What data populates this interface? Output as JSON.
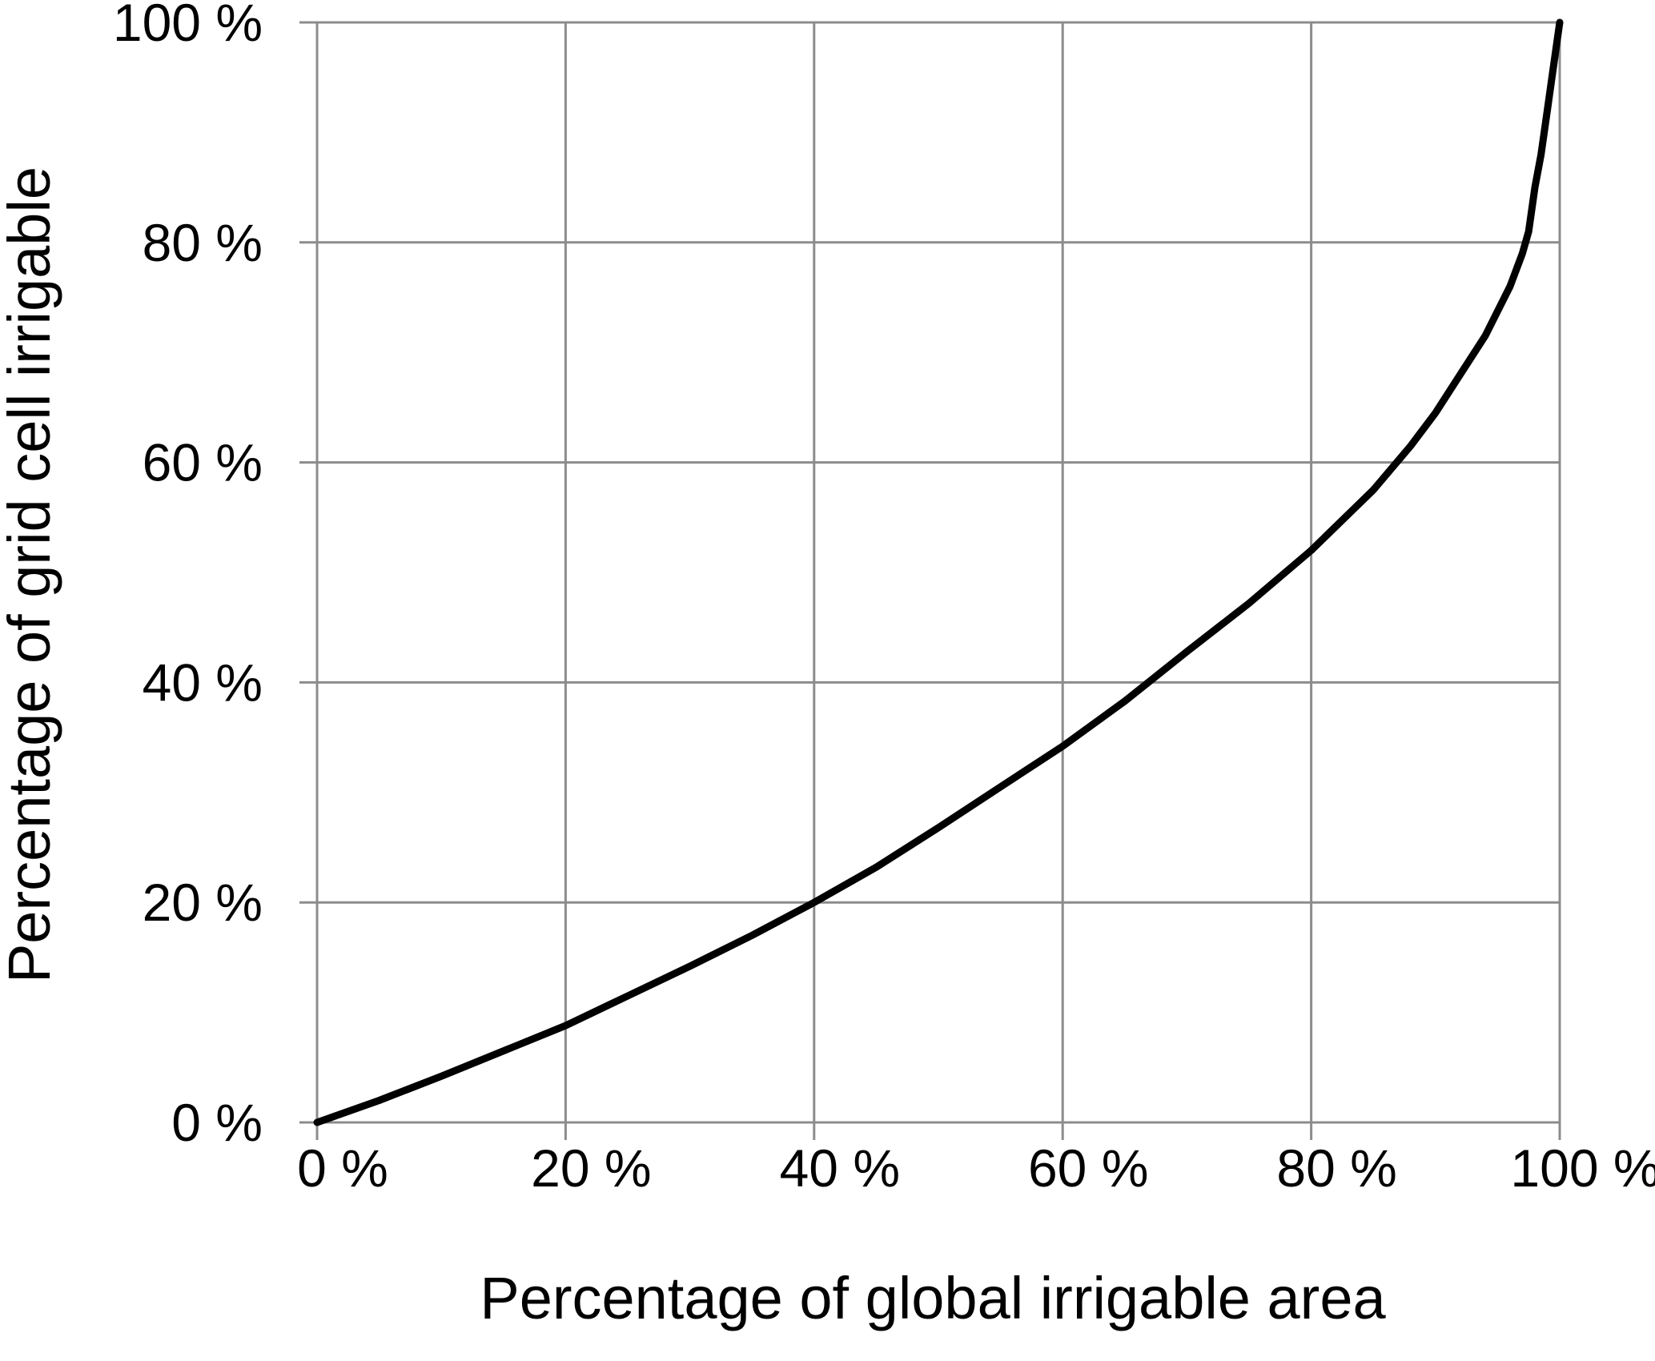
{
  "chart_data": {
    "type": "line",
    "title": "",
    "xlabel": "Percentage of global irrigable area",
    "ylabel": "Percentage of grid cell irrigable",
    "xlim": [
      0,
      100
    ],
    "ylim": [
      0,
      100
    ],
    "x_ticks": [
      0,
      20,
      40,
      60,
      80,
      100
    ],
    "y_ticks": [
      0,
      20,
      40,
      60,
      80,
      100
    ],
    "x_tick_labels": [
      "0 %",
      "20 %",
      "40 %",
      "60 %",
      "80 %",
      "100 %"
    ],
    "y_tick_labels": [
      "0 %",
      "20 %",
      "40 %",
      "60 %",
      "80 %",
      "100 %"
    ],
    "grid": true,
    "legend": "none",
    "series": [
      {
        "color": "#000000",
        "x": [
          0,
          5,
          10,
          15,
          20,
          25,
          30,
          35,
          40,
          45,
          50,
          55,
          60,
          65,
          70,
          75,
          80,
          85,
          88,
          90,
          92,
          94,
          96,
          97,
          97.5,
          98,
          98.5,
          99,
          99.5,
          100
        ],
        "y": [
          0,
          2,
          4.2,
          6.5,
          8.8,
          11.5,
          14.2,
          17,
          20,
          23.2,
          26.8,
          30.5,
          34.2,
          38.3,
          42.8,
          47.2,
          52,
          57.5,
          61.5,
          64.5,
          68,
          71.5,
          76,
          79,
          81,
          85,
          88,
          92,
          96,
          100
        ]
      }
    ]
  }
}
